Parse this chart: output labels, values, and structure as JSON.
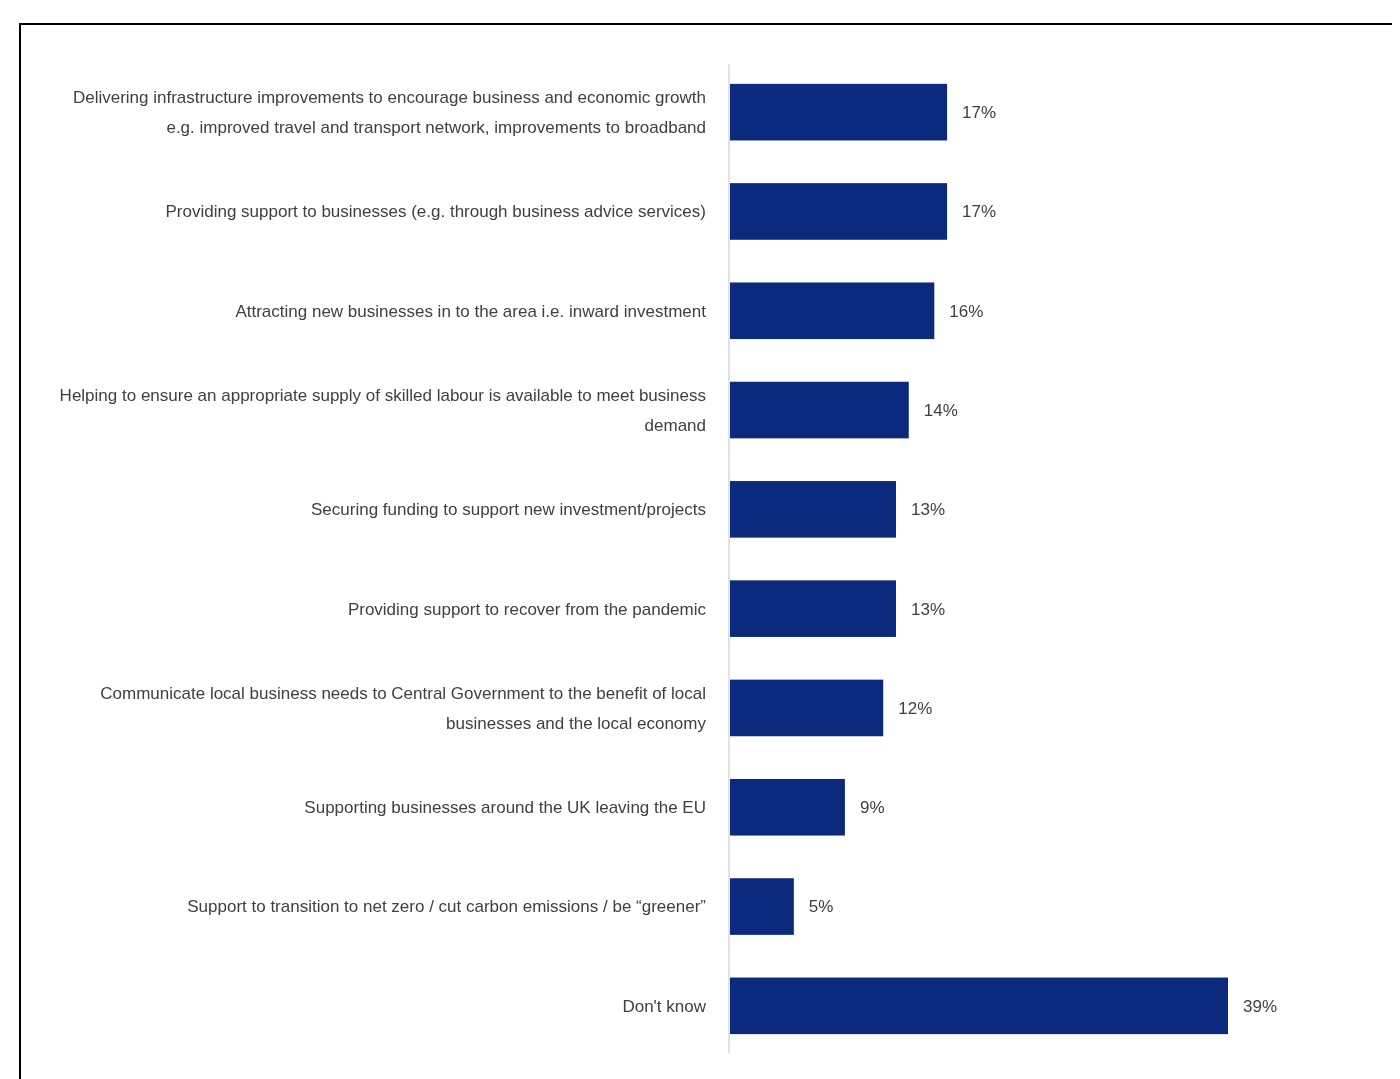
{
  "chart_data": {
    "type": "bar",
    "orientation": "horizontal",
    "categories": [
      "Delivering infrastructure improvements to encourage business and economic growth e.g. improved travel and transport network, improvements to broadband",
      "Providing support to businesses (e.g. through business advice services)",
      "Attracting new businesses in to the area i.e. inward investment",
      "Helping to ensure an appropriate supply of skilled labour is available to meet business demand",
      "Securing funding to support new investment/projects",
      "Providing support to recover from the pandemic",
      "Communicate local business needs to Central Government to the benefit of local businesses and the local economy",
      "Supporting businesses around the UK leaving the EU",
      "Support to transition to net zero / cut carbon emissions / be “greener”",
      "Don't know"
    ],
    "values": [
      17,
      17,
      16,
      14,
      13,
      13,
      12,
      9,
      5,
      39
    ],
    "value_labels": [
      "17%",
      "17%",
      "16%",
      "14%",
      "13%",
      "13%",
      "12%",
      "9%",
      "5%",
      "39%"
    ],
    "color": "#0b2a7e"
  }
}
